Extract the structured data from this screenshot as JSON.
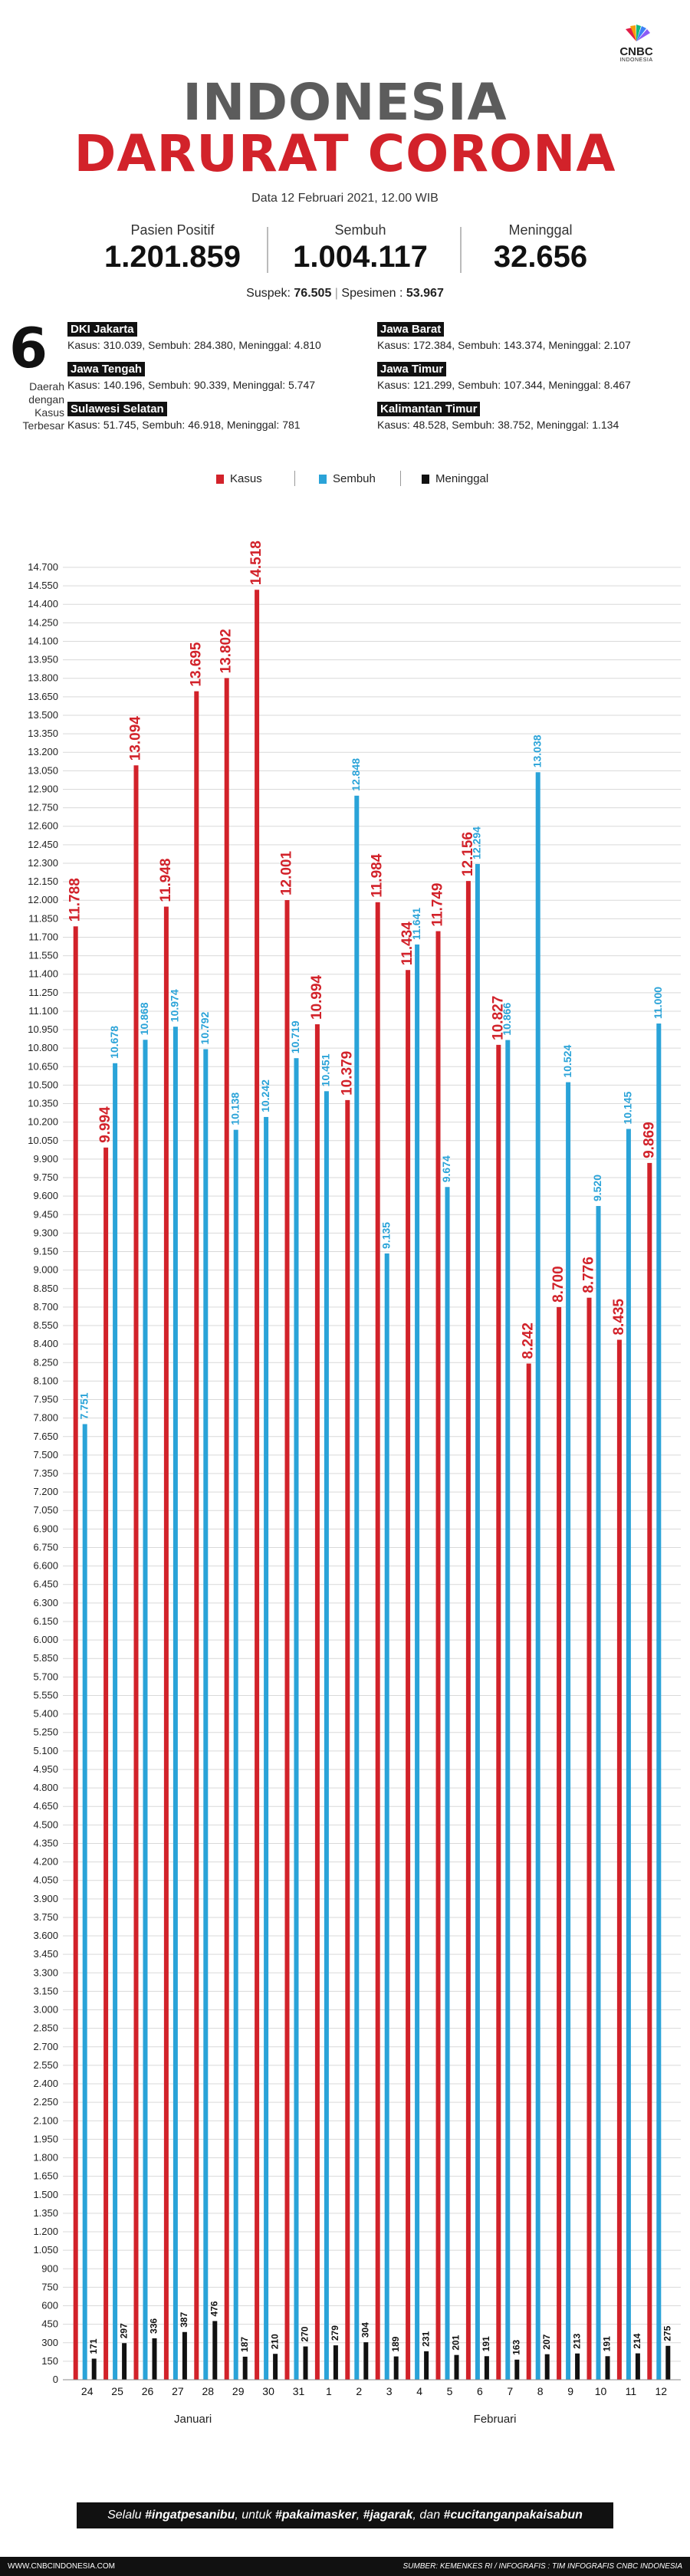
{
  "header": {
    "logo_text": "CNBC",
    "logo_sub": "INDONESIA",
    "title_line1": "INDONESIA",
    "title_line2": "DARURAT CORONA",
    "date": "Data 12 Februari 2021, 12.00 WIB"
  },
  "stats": [
    {
      "label": "Pasien Positif",
      "value": "1.201.859"
    },
    {
      "label": "Sembuh",
      "value": "1.004.117"
    },
    {
      "label": "Meninggal",
      "value": "32.656"
    }
  ],
  "suspect": {
    "label": "Suspek:",
    "value": "76.505",
    "label2": "Spesimen :",
    "value2": "53.967"
  },
  "regions_block": {
    "count": "6",
    "side_label": "Daerah dengan Kasus Terbesar",
    "regions": [
      {
        "name": "DKI Jakarta",
        "data": "Kasus: 310.039, Sembuh: 284.380, Meninggal: 4.810"
      },
      {
        "name": "Jawa Barat",
        "data": "Kasus: 172.384, Sembuh: 143.374, Meninggal: 2.107"
      },
      {
        "name": "Jawa Tengah",
        "data": "Kasus: 140.196, Sembuh: 90.339, Meninggal: 5.747"
      },
      {
        "name": "Jawa Timur",
        "data": "Kasus: 121.299, Sembuh: 107.344, Meninggal: 8.467"
      },
      {
        "name": "Sulawesi Selatan",
        "data": "Kasus: 51.745, Sembuh: 46.918, Meninggal: 781"
      },
      {
        "name": "Kalimantan Timur",
        "data": "Kasus: 48.528, Sembuh: 38.752, Meninggal: 1.134"
      }
    ]
  },
  "chart_data": {
    "type": "bar",
    "categories": [
      "24",
      "25",
      "26",
      "27",
      "28",
      "29",
      "30",
      "31",
      "1",
      "2",
      "3",
      "4",
      "5",
      "6",
      "7",
      "8",
      "9",
      "10",
      "11",
      "12"
    ],
    "month_labels": [
      {
        "label": "Januari",
        "from": 0,
        "to": 7
      },
      {
        "label": "Februari",
        "from": 8,
        "to": 19
      }
    ],
    "series": [
      {
        "name": "Kasus",
        "color": "#d2222a",
        "values": [
          11788,
          9994,
          13094,
          11948,
          13695,
          13802,
          14518,
          12001,
          10994,
          10379,
          11984,
          11434,
          11749,
          12156,
          10827,
          8242,
          8700,
          8776,
          8435,
          9869
        ],
        "labels": [
          "11.788",
          "9.994",
          "13.094",
          "11.948",
          "13.695",
          "13.802",
          "14.518",
          "12.001",
          "10.994",
          "10.379",
          "11.984",
          "11.434",
          "11.749",
          "12.156",
          "10.827",
          "8.242",
          "8.700",
          "8.776",
          "8.435",
          "9.869"
        ]
      },
      {
        "name": "Sembuh",
        "color": "#2aa3d8",
        "values": [
          7751,
          10678,
          10868,
          10974,
          10792,
          10138,
          10242,
          10719,
          10451,
          12848,
          9135,
          11641,
          9674,
          12294,
          10866,
          13038,
          10524,
          9520,
          10145,
          11000
        ],
        "labels": [
          "7.751",
          "10.678",
          "10.868",
          "10.974",
          "10.792",
          "10.138",
          "10.242",
          "10.719",
          "10.451",
          "12.848",
          "9.135",
          "11.641",
          "9.674",
          "12.294",
          "10.866",
          "13.038",
          "10.524",
          "9.520",
          "10.145",
          "11.000"
        ]
      },
      {
        "name": "Meninggal",
        "color": "#111111",
        "values": [
          171,
          297,
          336,
          387,
          476,
          187,
          210,
          270,
          279,
          304,
          189,
          231,
          201,
          191,
          163,
          207,
          213,
          191,
          214,
          275
        ],
        "labels": [
          "171",
          "297",
          "336",
          "387",
          "476",
          "187",
          "210",
          "270",
          "279",
          "304",
          "189",
          "231",
          "201",
          "191",
          "163",
          "207",
          "213",
          "191",
          "214",
          "275"
        ]
      }
    ],
    "ylim": [
      0,
      14700
    ],
    "ytick_step": 150,
    "grid": true,
    "legend": "top"
  },
  "slogan": {
    "prefix": "Selalu ",
    "a": "#ingatpesanibu",
    "mid1": ", untuk ",
    "b": "#pakaimasker",
    "mid2": ", ",
    "c": "#jagarak",
    "mid3": ", dan ",
    "d": "#cucitanganpakaisabun"
  },
  "footer": {
    "left": "WWW.CNBCINDONESIA.COM",
    "right": "SUMBER: KEMENKES RI / INFOGRAFIS : TIM INFOGRAFIS CNBC INDONESIA"
  }
}
